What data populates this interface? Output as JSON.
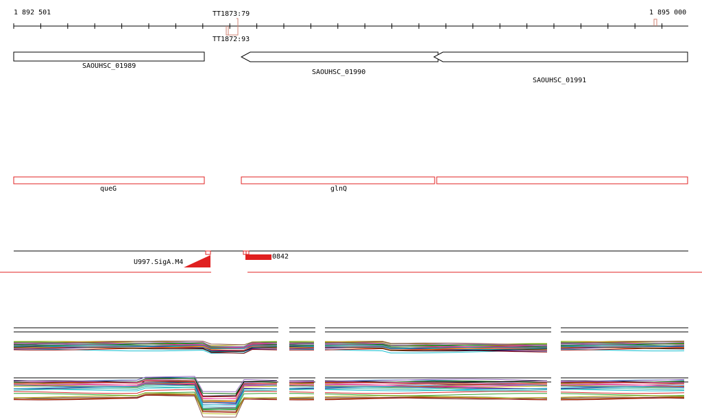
{
  "ruler": {
    "start_label": "1 892 501",
    "end_label": "1 895 000"
  },
  "terminators": [
    {
      "label": "TT1873:79",
      "strand": "+"
    },
    {
      "label": "TT1872:93",
      "strand": "-"
    }
  ],
  "genes": [
    {
      "label": "SAOUHSC_01989",
      "strand": "+"
    },
    {
      "label": "SAOUHSC_01990",
      "strand": "-"
    },
    {
      "label": "SAOUHSC_01991",
      "strand": "-"
    }
  ],
  "gene_names": [
    {
      "label": "queG"
    },
    {
      "label": "glnQ"
    },
    {
      "label": ""
    }
  ],
  "features": [
    {
      "label": "U997.SigA.M4"
    },
    {
      "label": "0842"
    }
  ],
  "colors": {
    "accent": "#e02020",
    "terminator": "#d08070",
    "outline": "#000000",
    "expression_palette": [
      "#2ca02c",
      "#ff7f0e",
      "#1f77b4",
      "#9467bd",
      "#8c564b",
      "#e377c2",
      "#bcbd22",
      "#17becf",
      "#d62728",
      "#7f7f7f",
      "#006400",
      "#8b0000",
      "#4b0082",
      "#b8860b",
      "#20b2aa",
      "#ff1493",
      "#000000"
    ]
  }
}
